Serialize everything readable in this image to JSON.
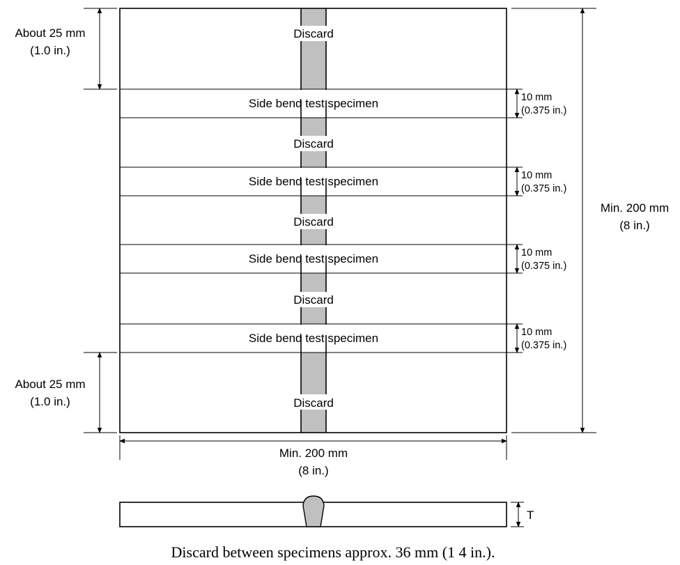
{
  "plate": {
    "regions": [
      {
        "kind": "discard",
        "label": "Discard"
      },
      {
        "kind": "specimen",
        "label": "Side bend test specimen"
      },
      {
        "kind": "discard",
        "label": "Discard"
      },
      {
        "kind": "specimen",
        "label": "Side bend test specimen"
      },
      {
        "kind": "discard",
        "label": "Discard"
      },
      {
        "kind": "specimen",
        "label": "Side bend test specimen"
      },
      {
        "kind": "discard",
        "label": "Discard"
      },
      {
        "kind": "specimen",
        "label": "Side bend test specimen"
      },
      {
        "kind": "discard",
        "label": "Discard"
      }
    ],
    "weld_color": "#c0c0c0"
  },
  "dimensions": {
    "top_discard": {
      "line1": "About 25 mm",
      "line2": "(1.0 in.)"
    },
    "bottom_discard": {
      "line1": "About 25 mm",
      "line2": "(1.0 in.)"
    },
    "specimen_width": {
      "line1": "10 mm",
      "line2": "(0.375 in.)"
    },
    "plate_length": {
      "line1": "Min. 200 mm",
      "line2": "(8 in.)"
    },
    "plate_width": {
      "line1": "Min. 200 mm",
      "line2": "(8 in.)"
    },
    "thickness": "T"
  },
  "caption": "Discard between specimens approx. 36 mm (1 4 in.)."
}
